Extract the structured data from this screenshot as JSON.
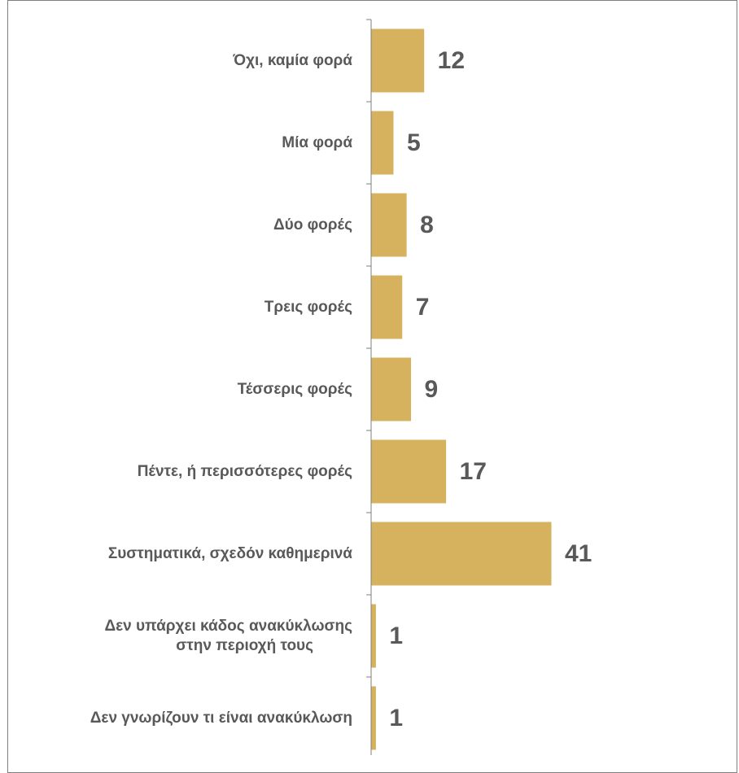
{
  "chart_data": {
    "type": "bar",
    "orientation": "horizontal",
    "categories": [
      [
        "Όχι, καμία φορά"
      ],
      [
        "Μία φορά"
      ],
      [
        "Δύο φορές"
      ],
      [
        "Τρεις φορές"
      ],
      [
        "Τέσσερις φορές"
      ],
      [
        "Πέντε, ή περισσότερες φορές"
      ],
      [
        "Συστηματικά, σχεδόν καθημερινά"
      ],
      [
        "Δεν υπάρχει κάδος ανακύκλωσης",
        "στην περιοχή τους"
      ],
      [
        "Δεν γνωρίζουν τι είναι ανακύκλωση"
      ]
    ],
    "values": [
      12,
      5,
      8,
      7,
      9,
      17,
      41,
      1,
      1
    ],
    "xlim": [
      0,
      50
    ],
    "grid": false,
    "legend": false,
    "colors": {
      "bar": "#d6b25e",
      "text": "#595959",
      "axis": "#7f7f7f",
      "frame": "#7f7f7f"
    }
  }
}
